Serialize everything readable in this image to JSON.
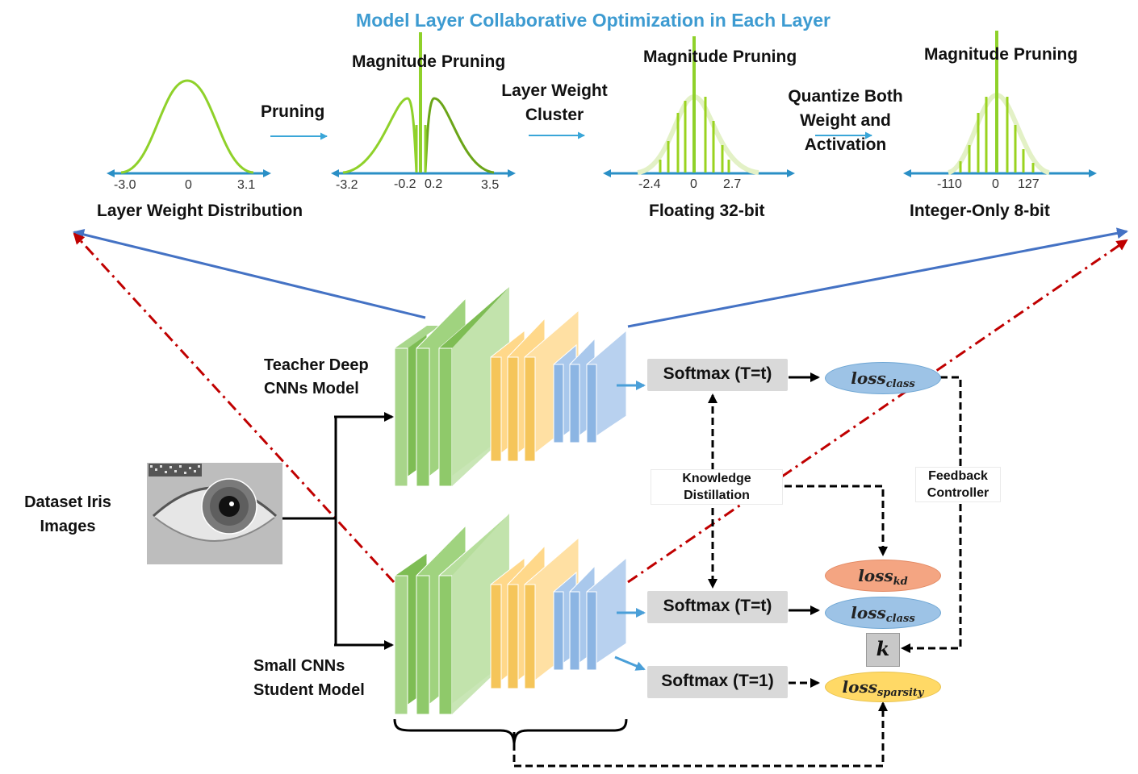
{
  "title": "Model Layer Collaborative Optimization in Each Layer",
  "stages": {
    "pruning_label": "Pruning",
    "cluster_label": "Layer Weight Cluster",
    "quantize_label": "Quantize Both Weight and Activation",
    "mag1": "Magnitude Pruning",
    "mag2": "Magnitude Pruning",
    "mag3": "Magnitude Pruning",
    "dist_label": "Layer Weight Distribution",
    "float_label": "Floating 32-bit",
    "int_label": "Integer-Only 8-bit"
  },
  "ticks": {
    "d1": [
      "-3.0",
      "0",
      "3.1"
    ],
    "d2": [
      "-3.2",
      "-0.2",
      "0.2",
      "3.5"
    ],
    "d3": [
      "-2.4",
      "0",
      "2.7"
    ],
    "d4": [
      "-110",
      "0",
      "127"
    ]
  },
  "models": {
    "teacher": "Teacher Deep CNNs Model",
    "student": "Small CNNs Student Model",
    "dataset": "Dataset Iris Images"
  },
  "softmax": {
    "teacher": "Softmax (T=t)",
    "student_t": "Softmax (T=t)",
    "student_1": "Softmax (T=1)"
  },
  "controls": {
    "kd": "Knowledge Distillation",
    "feedback": "Feedback Controller",
    "k": "k"
  },
  "losses": {
    "teacher_class": {
      "base": "loss",
      "sub": "class"
    },
    "kd": {
      "base": "loss",
      "sub": "kd"
    },
    "student_class": {
      "base": "loss",
      "sub": "class"
    },
    "sparsity": {
      "base": "loss",
      "sub": "sparsity"
    }
  },
  "colors": {
    "title": "#3d9bd1",
    "axis": "#2a8fc6",
    "curve": "#8fd12a",
    "bars": "#9ad31f",
    "conv": "#8fc96a",
    "pool": "#f5c55a",
    "fc": "#8cb5e3",
    "blue_line": "#4472c4",
    "red_dashdot": "#c00000",
    "loss_blue": "#9dc3e6",
    "loss_red": "#f4a582",
    "loss_yellow": "#ffd966"
  }
}
